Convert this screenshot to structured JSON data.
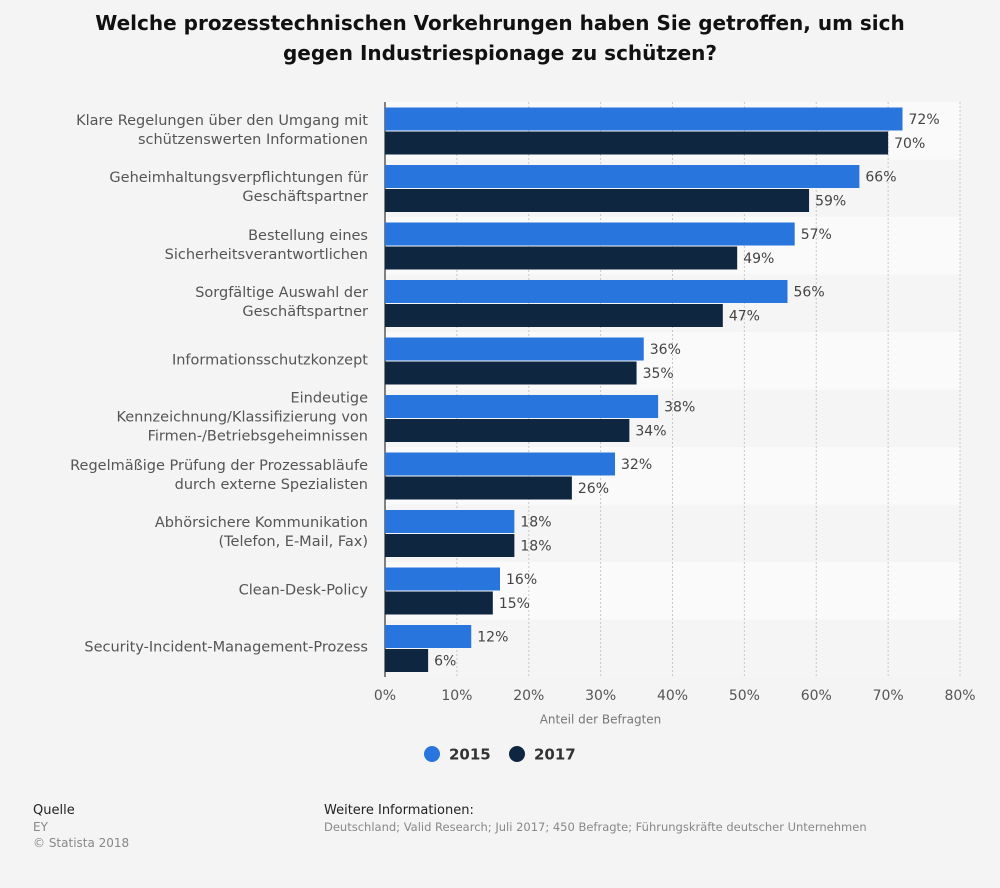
{
  "chart_data": {
    "type": "bar",
    "orientation": "horizontal",
    "title": "Welche prozesstechnischen Vorkehrungen haben Sie getroffen, um sich gegen Industriespionage zu schützen?",
    "categories": [
      "Klare Regelungen über den Umgang mit\nschützenswerten Informationen",
      "Geheimhaltungsverpflichtungen für\nGeschäftspartner",
      "Bestellung eines\nSicherheitsverantwortlichen",
      "Sorgfältige Auswahl der\nGeschäftspartner",
      "Informationsschutzkonzept",
      "Eindeutige\nKennzeichnung/Klassifizierung von\nFirmen-/Betriebsgeheimnissen",
      "Regelmäßige Prüfung der Prozessabläufe\ndurch externe Spezialisten",
      "Abhörsichere Kommunikation\n(Telefon, E-Mail, Fax)",
      "Clean-Desk-Policy",
      "Security-Incident-Management-Prozess"
    ],
    "series": [
      {
        "name": "2015",
        "color": "#2876dd",
        "values": [
          72,
          66,
          57,
          56,
          36,
          38,
          32,
          18,
          16,
          12
        ],
        "value_labels": [
          "72%",
          "66%",
          "57%",
          "56%",
          "36%",
          "38%",
          "32%",
          "18%",
          "16%",
          "12%"
        ]
      },
      {
        "name": "2017",
        "color": "#0f2640",
        "values": [
          70,
          59,
          49,
          47,
          35,
          34,
          26,
          18,
          15,
          6
        ],
        "value_labels": [
          "70%",
          "59%",
          "49%",
          "47%",
          "35%",
          "34%",
          "26%",
          "18%",
          "15%",
          "6%"
        ]
      }
    ],
    "xlabel": "Anteil der Befragten",
    "xlim": [
      0,
      80
    ],
    "xticks": [
      {
        "value": 0,
        "label": "0%"
      },
      {
        "value": 10,
        "label": "10%"
      },
      {
        "value": 20,
        "label": "20%"
      },
      {
        "value": 30,
        "label": "30%"
      },
      {
        "value": 40,
        "label": "40%"
      },
      {
        "value": 50,
        "label": "50%"
      },
      {
        "value": 60,
        "label": "60%"
      },
      {
        "value": 70,
        "label": "70%"
      },
      {
        "value": 80,
        "label": "80%"
      }
    ],
    "grid": true,
    "legend": "bottom"
  },
  "footer": {
    "source_title": "Quelle",
    "source": "EY",
    "copyright": "© Statista 2018",
    "info_title": "Weitere Informationen:",
    "info": "Deutschland; Valid Research; Juli 2017; 450 Befragte; Führungskräfte deutscher Unternehmen"
  }
}
